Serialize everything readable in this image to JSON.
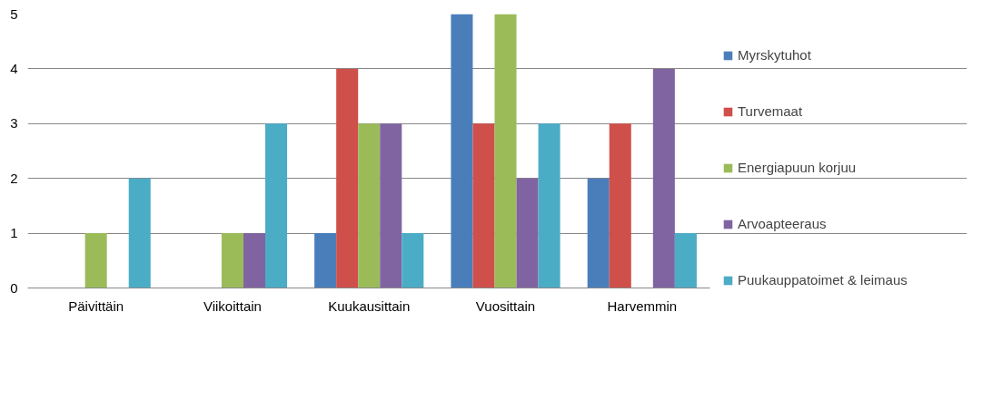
{
  "chart_data": {
    "type": "bar",
    "categories": [
      "Päivittäin",
      "Viikoittain",
      "Kuukausittain",
      "Vuosittain",
      "Harvemmin"
    ],
    "series": [
      {
        "name": "Myrskytuhot",
        "color": "#4a7ebb",
        "values": [
          0,
          0,
          1,
          5,
          2
        ]
      },
      {
        "name": "Turvemaat",
        "color": "#cf4f4b",
        "values": [
          0,
          0,
          4,
          3,
          3
        ]
      },
      {
        "name": "Energiapuun korjuu",
        "color": "#9bbb59",
        "values": [
          1,
          1,
          3,
          5,
          0
        ]
      },
      {
        "name": "Arvoapteeraus",
        "color": "#8064a2",
        "values": [
          0,
          1,
          3,
          2,
          4
        ]
      },
      {
        "name": "Puukauppatoimet & leimaus",
        "color": "#4bacc6",
        "values": [
          2,
          3,
          1,
          3,
          1
        ]
      }
    ],
    "ylim": [
      0,
      5
    ],
    "yticks": [
      0,
      1,
      2,
      3,
      4,
      5
    ],
    "grid": "y",
    "legend": "right"
  }
}
